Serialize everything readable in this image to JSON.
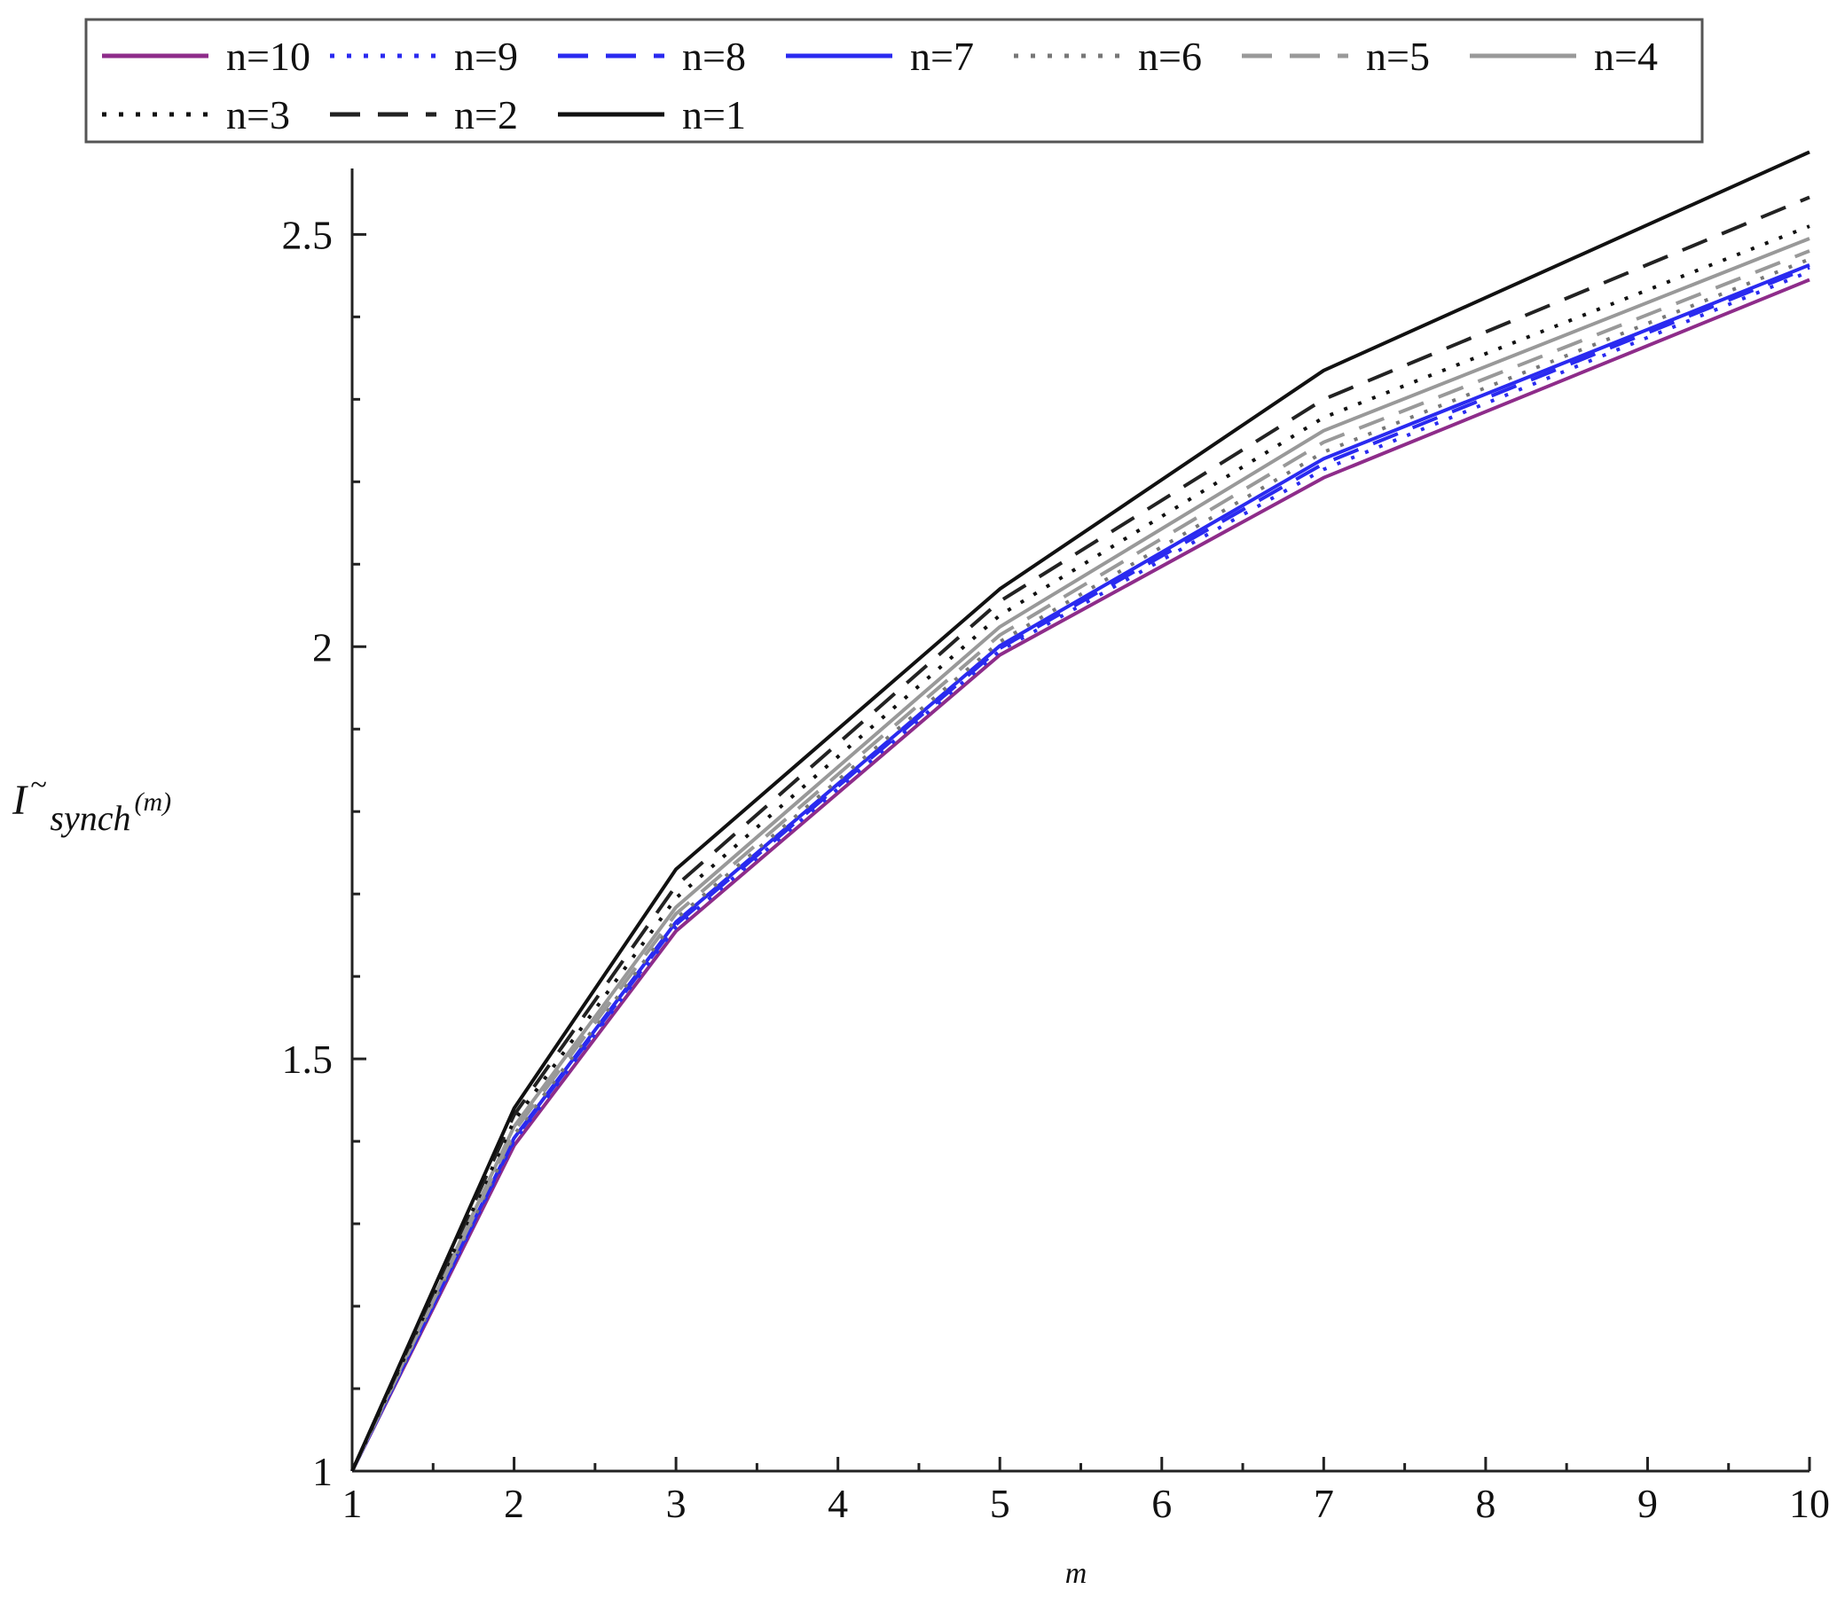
{
  "chart_data": {
    "type": "line",
    "x": [
      1,
      2,
      3,
      5,
      7,
      10
    ],
    "xlabel": "m",
    "ylabel": {
      "main": "I",
      "tilde": "~",
      "sub": "synch",
      "arg": "(m)"
    },
    "xlim": [
      1,
      10
    ],
    "ylim": [
      1,
      2.58
    ],
    "xticks": [
      1,
      2,
      3,
      4,
      5,
      6,
      7,
      8,
      9,
      10
    ],
    "yticks": [
      1,
      1.5,
      2,
      2.5
    ],
    "ytick_labels": [
      "1",
      "1.5",
      "2",
      "2.5"
    ],
    "grid": false,
    "legend_position": "top",
    "series": [
      {
        "name": "n=10",
        "color": "#8e2c8a",
        "dash": "solid",
        "values": [
          1,
          1.395,
          1.655,
          1.99,
          2.205,
          2.445
        ]
      },
      {
        "name": "n=9",
        "color": "#2a2af0",
        "dash": "dotted",
        "values": [
          1,
          1.4,
          1.66,
          1.995,
          2.215,
          2.455
        ]
      },
      {
        "name": "n=8",
        "color": "#2a2af0",
        "dash": "dashed",
        "values": [
          1,
          1.402,
          1.663,
          1.998,
          2.222,
          2.46
        ]
      },
      {
        "name": "n=7",
        "color": "#2a2af0",
        "dash": "solid",
        "values": [
          1,
          1.404,
          1.666,
          2.001,
          2.228,
          2.463
        ]
      },
      {
        "name": "n=6",
        "color": "#777777",
        "dash": "dotted",
        "values": [
          1,
          1.408,
          1.67,
          2.006,
          2.236,
          2.47
        ]
      },
      {
        "name": "n=5",
        "color": "#999999",
        "dash": "dashed",
        "values": [
          1,
          1.412,
          1.676,
          2.014,
          2.248,
          2.48
        ]
      },
      {
        "name": "n=4",
        "color": "#999999",
        "dash": "solid",
        "values": [
          1,
          1.418,
          1.684,
          2.024,
          2.262,
          2.495
        ]
      },
      {
        "name": "n=3",
        "color": "#111111",
        "dash": "dotted",
        "values": [
          1,
          1.425,
          1.695,
          2.038,
          2.278,
          2.51
        ]
      },
      {
        "name": "n=2",
        "color": "#222222",
        "dash": "dashed",
        "values": [
          1,
          1.432,
          1.71,
          2.055,
          2.3,
          2.545
        ]
      },
      {
        "name": "n=1",
        "color": "#111111",
        "dash": "solid",
        "values": [
          1,
          1.44,
          1.73,
          2.07,
          2.335,
          2.6
        ]
      }
    ]
  }
}
